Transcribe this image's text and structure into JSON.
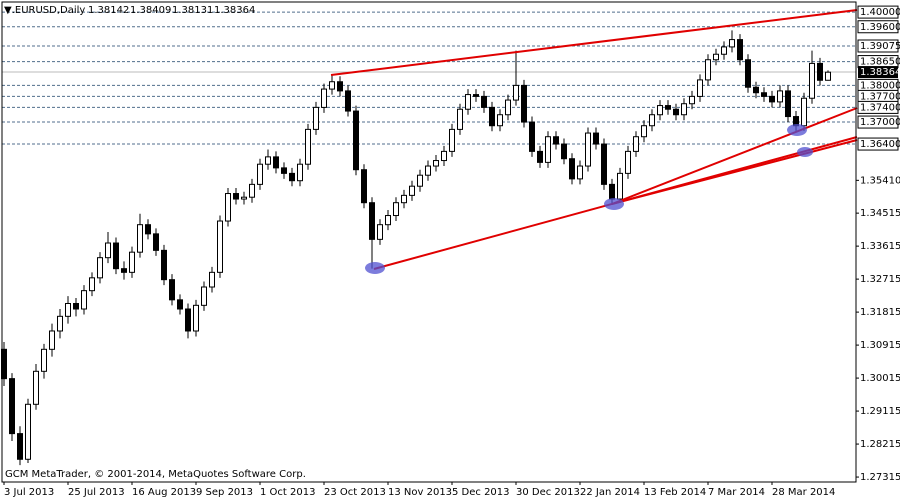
{
  "chart_data": {
    "type": "candlestick",
    "header": {
      "symbol": "▼.EURUSD,Daily",
      "ohlc": [
        "1.38142",
        "1.38409",
        "1.38131",
        "1.38364"
      ]
    },
    "footer": "GCM MetaTrader, © 2001-2014, MetaQuotes Software Corp.",
    "x_labels": [
      "3 Jul 2013",
      "25 Jul 2013",
      "16 Aug 2013",
      "9 Sep 2013",
      "1 Oct 2013",
      "23 Oct 2013",
      "13 Nov 2013",
      "5 Dec 2013",
      "30 Dec 2013",
      "22 Jan 2014",
      "13 Feb 2014",
      "7 Mar 2014",
      "28 Mar 2014"
    ],
    "ylim": [
      1.2718,
      1.4033
    ],
    "yticks": [
      {
        "value": 1.3541,
        "label": "1.35410"
      },
      {
        "value": 1.34515,
        "label": "1.34515"
      },
      {
        "value": 1.33615,
        "label": "1.33615"
      },
      {
        "value": 1.32715,
        "label": "1.32715"
      },
      {
        "value": 1.31815,
        "label": "1.31815"
      },
      {
        "value": 1.30915,
        "label": "1.30915"
      },
      {
        "value": 1.30015,
        "label": "1.30015"
      },
      {
        "value": 1.29115,
        "label": "1.29115"
      },
      {
        "value": 1.28215,
        "label": "1.28215"
      },
      {
        "value": 1.27315,
        "label": "1.27315"
      }
    ],
    "levels": [
      {
        "value": 1.4,
        "label": "1.40000"
      },
      {
        "value": 1.396,
        "label": "1.39600"
      },
      {
        "value": 1.39075,
        "label": "1.39075"
      },
      {
        "value": 1.3865,
        "label": "1.38650"
      },
      {
        "value": 1.38,
        "label": "1.38000"
      },
      {
        "value": 1.377,
        "label": "1.37700"
      },
      {
        "value": 1.374,
        "label": "1.37400"
      },
      {
        "value": 1.37,
        "label": "1.37000"
      },
      {
        "value": 1.364,
        "label": "1.36400"
      }
    ],
    "last_price": {
      "value": 1.38364,
      "label": "1.38364"
    },
    "ohlc": [
      [
        1.308,
        1.31,
        1.298,
        1.3
      ],
      [
        1.3,
        1.3015,
        1.283,
        1.285
      ],
      [
        1.285,
        1.287,
        1.2764,
        1.278
      ],
      [
        1.278,
        1.2945,
        1.277,
        1.293
      ],
      [
        1.293,
        1.304,
        1.2915,
        1.302
      ],
      [
        1.302,
        1.3095,
        1.3,
        1.308
      ],
      [
        1.308,
        1.315,
        1.306,
        1.313
      ],
      [
        1.313,
        1.319,
        1.311,
        1.317
      ],
      [
        1.317,
        1.3225,
        1.315,
        1.3205
      ],
      [
        1.3205,
        1.322,
        1.317,
        1.319
      ],
      [
        1.319,
        1.3255,
        1.3175,
        1.324
      ],
      [
        1.324,
        1.329,
        1.3225,
        1.3275
      ],
      [
        1.3275,
        1.3345,
        1.326,
        1.333
      ],
      [
        1.333,
        1.34,
        1.3315,
        1.337
      ],
      [
        1.337,
        1.3385,
        1.3285,
        1.33
      ],
      [
        1.33,
        1.332,
        1.327,
        1.329
      ],
      [
        1.329,
        1.336,
        1.3275,
        1.3345
      ],
      [
        1.3345,
        1.345,
        1.333,
        1.342
      ],
      [
        1.342,
        1.3435,
        1.338,
        1.3395
      ],
      [
        1.3395,
        1.341,
        1.3335,
        1.335
      ],
      [
        1.335,
        1.3365,
        1.3255,
        1.327
      ],
      [
        1.327,
        1.3285,
        1.32,
        1.3215
      ],
      [
        1.3215,
        1.323,
        1.3175,
        1.319
      ],
      [
        1.319,
        1.3205,
        1.311,
        1.313
      ],
      [
        1.313,
        1.3215,
        1.3115,
        1.32
      ],
      [
        1.32,
        1.3265,
        1.3185,
        1.325
      ],
      [
        1.325,
        1.3305,
        1.3235,
        1.329
      ],
      [
        1.329,
        1.3445,
        1.3275,
        1.343
      ],
      [
        1.343,
        1.352,
        1.3415,
        1.3505
      ],
      [
        1.3505,
        1.352,
        1.3475,
        1.349
      ],
      [
        1.349,
        1.351,
        1.3475,
        1.3495
      ],
      [
        1.3495,
        1.3545,
        1.348,
        1.353
      ],
      [
        1.353,
        1.36,
        1.3515,
        1.3585
      ],
      [
        1.3585,
        1.3625,
        1.357,
        1.3605
      ],
      [
        1.3605,
        1.362,
        1.356,
        1.3575
      ],
      [
        1.3575,
        1.359,
        1.3545,
        1.356
      ],
      [
        1.356,
        1.3575,
        1.3525,
        1.354
      ],
      [
        1.354,
        1.36,
        1.3525,
        1.3585
      ],
      [
        1.3585,
        1.3695,
        1.357,
        1.368
      ],
      [
        1.368,
        1.3755,
        1.3665,
        1.374
      ],
      [
        1.374,
        1.3805,
        1.3725,
        1.379
      ],
      [
        1.379,
        1.383,
        1.3775,
        1.381
      ],
      [
        1.381,
        1.3825,
        1.377,
        1.3785
      ],
      [
        1.3785,
        1.38,
        1.3715,
        1.373
      ],
      [
        1.373,
        1.3745,
        1.3555,
        1.357
      ],
      [
        1.357,
        1.3585,
        1.3465,
        1.348
      ],
      [
        1.348,
        1.3495,
        1.33,
        1.338
      ],
      [
        1.338,
        1.3435,
        1.3365,
        1.342
      ],
      [
        1.342,
        1.346,
        1.3405,
        1.3445
      ],
      [
        1.3445,
        1.3495,
        1.343,
        1.348
      ],
      [
        1.348,
        1.3515,
        1.3465,
        1.35
      ],
      [
        1.35,
        1.354,
        1.3485,
        1.3525
      ],
      [
        1.3525,
        1.357,
        1.351,
        1.3555
      ],
      [
        1.3555,
        1.3595,
        1.354,
        1.358
      ],
      [
        1.358,
        1.361,
        1.3565,
        1.3595
      ],
      [
        1.3595,
        1.3635,
        1.358,
        1.362
      ],
      [
        1.362,
        1.3695,
        1.3605,
        1.368
      ],
      [
        1.368,
        1.375,
        1.3665,
        1.3735
      ],
      [
        1.3735,
        1.379,
        1.372,
        1.3775
      ],
      [
        1.3775,
        1.379,
        1.3755,
        1.377
      ],
      [
        1.377,
        1.3785,
        1.3725,
        1.374
      ],
      [
        1.374,
        1.3755,
        1.3675,
        1.369
      ],
      [
        1.369,
        1.3735,
        1.3675,
        1.372
      ],
      [
        1.372,
        1.3775,
        1.3705,
        1.376
      ],
      [
        1.376,
        1.3895,
        1.3745,
        1.38
      ],
      [
        1.38,
        1.3815,
        1.3685,
        1.37
      ],
      [
        1.37,
        1.3715,
        1.3605,
        1.362
      ],
      [
        1.362,
        1.3635,
        1.3575,
        1.359
      ],
      [
        1.359,
        1.3675,
        1.3575,
        1.366
      ],
      [
        1.366,
        1.3675,
        1.3625,
        1.364
      ],
      [
        1.364,
        1.3655,
        1.3585,
        1.36
      ],
      [
        1.36,
        1.3615,
        1.353,
        1.3545
      ],
      [
        1.3545,
        1.3595,
        1.353,
        1.358
      ],
      [
        1.358,
        1.3685,
        1.3565,
        1.367
      ],
      [
        1.367,
        1.3685,
        1.3625,
        1.364
      ],
      [
        1.364,
        1.3655,
        1.3515,
        1.353
      ],
      [
        1.353,
        1.3545,
        1.3478,
        1.349
      ],
      [
        1.349,
        1.3575,
        1.348,
        1.356
      ],
      [
        1.356,
        1.3635,
        1.3545,
        1.362
      ],
      [
        1.362,
        1.3675,
        1.3605,
        1.366
      ],
      [
        1.366,
        1.3705,
        1.3645,
        1.369
      ],
      [
        1.369,
        1.3735,
        1.3675,
        1.372
      ],
      [
        1.372,
        1.376,
        1.3705,
        1.3745
      ],
      [
        1.3745,
        1.376,
        1.372,
        1.3735
      ],
      [
        1.3735,
        1.375,
        1.3705,
        1.372
      ],
      [
        1.372,
        1.3765,
        1.3705,
        1.375
      ],
      [
        1.375,
        1.3785,
        1.3735,
        1.377
      ],
      [
        1.377,
        1.383,
        1.3755,
        1.3815
      ],
      [
        1.3815,
        1.3885,
        1.38,
        1.387
      ],
      [
        1.387,
        1.39,
        1.3855,
        1.3885
      ],
      [
        1.3885,
        1.392,
        1.387,
        1.3905
      ],
      [
        1.3905,
        1.395,
        1.389,
        1.3925
      ],
      [
        1.3925,
        1.394,
        1.3855,
        1.387
      ],
      [
        1.387,
        1.3885,
        1.378,
        1.3795
      ],
      [
        1.3795,
        1.381,
        1.3765,
        1.378
      ],
      [
        1.378,
        1.3795,
        1.3755,
        1.377
      ],
      [
        1.377,
        1.3785,
        1.374,
        1.3755
      ],
      [
        1.3755,
        1.38,
        1.374,
        1.3785
      ],
      [
        1.3785,
        1.38,
        1.37,
        1.3715
      ],
      [
        1.3715,
        1.373,
        1.3676,
        1.369
      ],
      [
        1.369,
        1.378,
        1.3676,
        1.3765
      ],
      [
        1.3765,
        1.3895,
        1.375,
        1.386
      ],
      [
        1.386,
        1.3875,
        1.38,
        1.3814
      ],
      [
        1.3814,
        1.3841,
        1.3813,
        1.3836
      ]
    ]
  }
}
